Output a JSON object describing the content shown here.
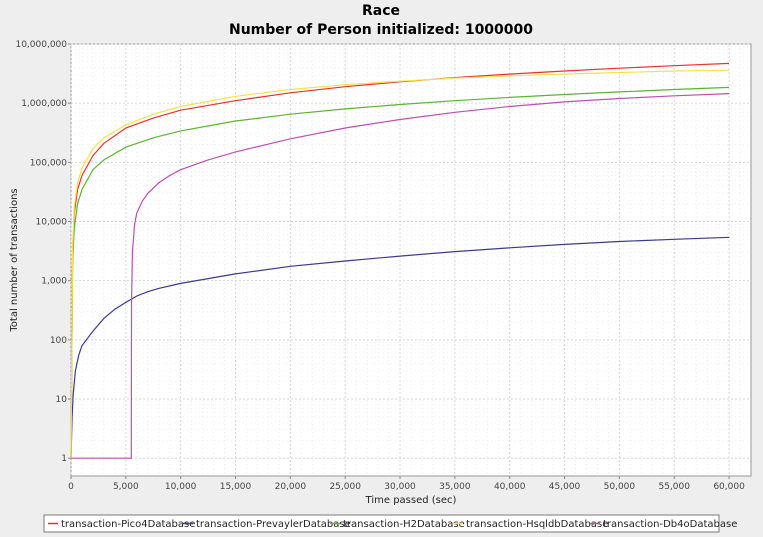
{
  "chart_data": {
    "type": "line",
    "title": "Race",
    "subtitle": "Number of Person initialized: 1000000",
    "xlabel": "Time passed (sec)",
    "ylabel": "Total number of transactions",
    "xlim": [
      0,
      62000
    ],
    "ylim": [
      0.5,
      10000000
    ],
    "yscale": "log",
    "grid": true,
    "legend_position": "bottom",
    "x_ticks": [
      0,
      5000,
      10000,
      15000,
      20000,
      25000,
      30000,
      35000,
      40000,
      45000,
      50000,
      55000,
      60000
    ],
    "x_tick_labels": [
      "0",
      "5,000",
      "10,000",
      "15,000",
      "20,000",
      "25,000",
      "30,000",
      "35,000",
      "40,000",
      "45,000",
      "50,000",
      "55,000",
      "60,000"
    ],
    "y_ticks": [
      1,
      10,
      100,
      1000,
      10000,
      100000,
      1000000,
      10000000
    ],
    "y_tick_labels": [
      "1",
      "10",
      "100",
      "1,000",
      "10,000",
      "100,000",
      "1,000,000",
      "10,000,000"
    ],
    "series": [
      {
        "name": "transaction-Pico4Database",
        "color": "#e8332b",
        "points": [
          [
            0,
            1
          ],
          [
            150,
            3000
          ],
          [
            300,
            14000
          ],
          [
            600,
            35000
          ],
          [
            1000,
            60000
          ],
          [
            2000,
            130000
          ],
          [
            3000,
            210000
          ],
          [
            5000,
            380000
          ],
          [
            7500,
            560000
          ],
          [
            10000,
            760000
          ],
          [
            15000,
            1100000
          ],
          [
            20000,
            1500000
          ],
          [
            25000,
            1900000
          ],
          [
            30000,
            2300000
          ],
          [
            35000,
            2700000
          ],
          [
            40000,
            3100000
          ],
          [
            45000,
            3500000
          ],
          [
            50000,
            3900000
          ],
          [
            55000,
            4300000
          ],
          [
            60000,
            4700000
          ]
        ]
      },
      {
        "name": "transaction-PrevaylerDatabase",
        "color": "#3a3a90",
        "points": [
          [
            0,
            1
          ],
          [
            100,
            5
          ],
          [
            200,
            12
          ],
          [
            400,
            30
          ],
          [
            700,
            55
          ],
          [
            1000,
            80
          ],
          [
            2000,
            140
          ],
          [
            3000,
            230
          ],
          [
            4000,
            330
          ],
          [
            5000,
            430
          ],
          [
            6000,
            550
          ],
          [
            7000,
            650
          ],
          [
            8000,
            740
          ],
          [
            10000,
            900
          ],
          [
            15000,
            1300
          ],
          [
            20000,
            1750
          ],
          [
            25000,
            2150
          ],
          [
            30000,
            2600
          ],
          [
            35000,
            3100
          ],
          [
            40000,
            3600
          ],
          [
            45000,
            4100
          ],
          [
            50000,
            4600
          ],
          [
            55000,
            5000
          ],
          [
            60000,
            5400
          ]
        ]
      },
      {
        "name": "transaction-H2Database",
        "color": "#5ab532",
        "points": [
          [
            0,
            1
          ],
          [
            150,
            2000
          ],
          [
            300,
            8000
          ],
          [
            600,
            20000
          ],
          [
            1000,
            35000
          ],
          [
            2000,
            75000
          ],
          [
            3000,
            110000
          ],
          [
            5000,
            180000
          ],
          [
            7500,
            260000
          ],
          [
            10000,
            340000
          ],
          [
            15000,
            500000
          ],
          [
            20000,
            650000
          ],
          [
            25000,
            800000
          ],
          [
            30000,
            950000
          ],
          [
            35000,
            1100000
          ],
          [
            40000,
            1250000
          ],
          [
            45000,
            1400000
          ],
          [
            50000,
            1550000
          ],
          [
            55000,
            1700000
          ],
          [
            60000,
            1850000
          ]
        ]
      },
      {
        "name": "transaction-HsqldbDatabase",
        "color": "#f5e24a",
        "points": [
          [
            0,
            1
          ],
          [
            150,
            4000
          ],
          [
            300,
            18000
          ],
          [
            600,
            45000
          ],
          [
            1000,
            80000
          ],
          [
            2000,
            170000
          ],
          [
            3000,
            260000
          ],
          [
            5000,
            430000
          ],
          [
            7500,
            650000
          ],
          [
            10000,
            880000
          ],
          [
            15000,
            1300000
          ],
          [
            20000,
            1700000
          ],
          [
            25000,
            2050000
          ],
          [
            30000,
            2350000
          ],
          [
            35000,
            2650000
          ],
          [
            40000,
            2900000
          ],
          [
            45000,
            3100000
          ],
          [
            50000,
            3300000
          ],
          [
            55000,
            3500000
          ],
          [
            60000,
            3600000
          ]
        ]
      },
      {
        "name": "transaction-Db4oDatabase",
        "color": "#c04fb0",
        "points": [
          [
            0,
            1
          ],
          [
            5500,
            1
          ],
          [
            5520,
            400
          ],
          [
            5600,
            3000
          ],
          [
            5800,
            9000
          ],
          [
            6000,
            14000
          ],
          [
            6500,
            22000
          ],
          [
            7000,
            30000
          ],
          [
            8000,
            45000
          ],
          [
            9000,
            60000
          ],
          [
            10000,
            75000
          ],
          [
            12500,
            110000
          ],
          [
            15000,
            150000
          ],
          [
            20000,
            250000
          ],
          [
            25000,
            380000
          ],
          [
            30000,
            530000
          ],
          [
            35000,
            700000
          ],
          [
            40000,
            880000
          ],
          [
            45000,
            1050000
          ],
          [
            50000,
            1200000
          ],
          [
            55000,
            1330000
          ],
          [
            60000,
            1450000
          ]
        ]
      }
    ]
  }
}
